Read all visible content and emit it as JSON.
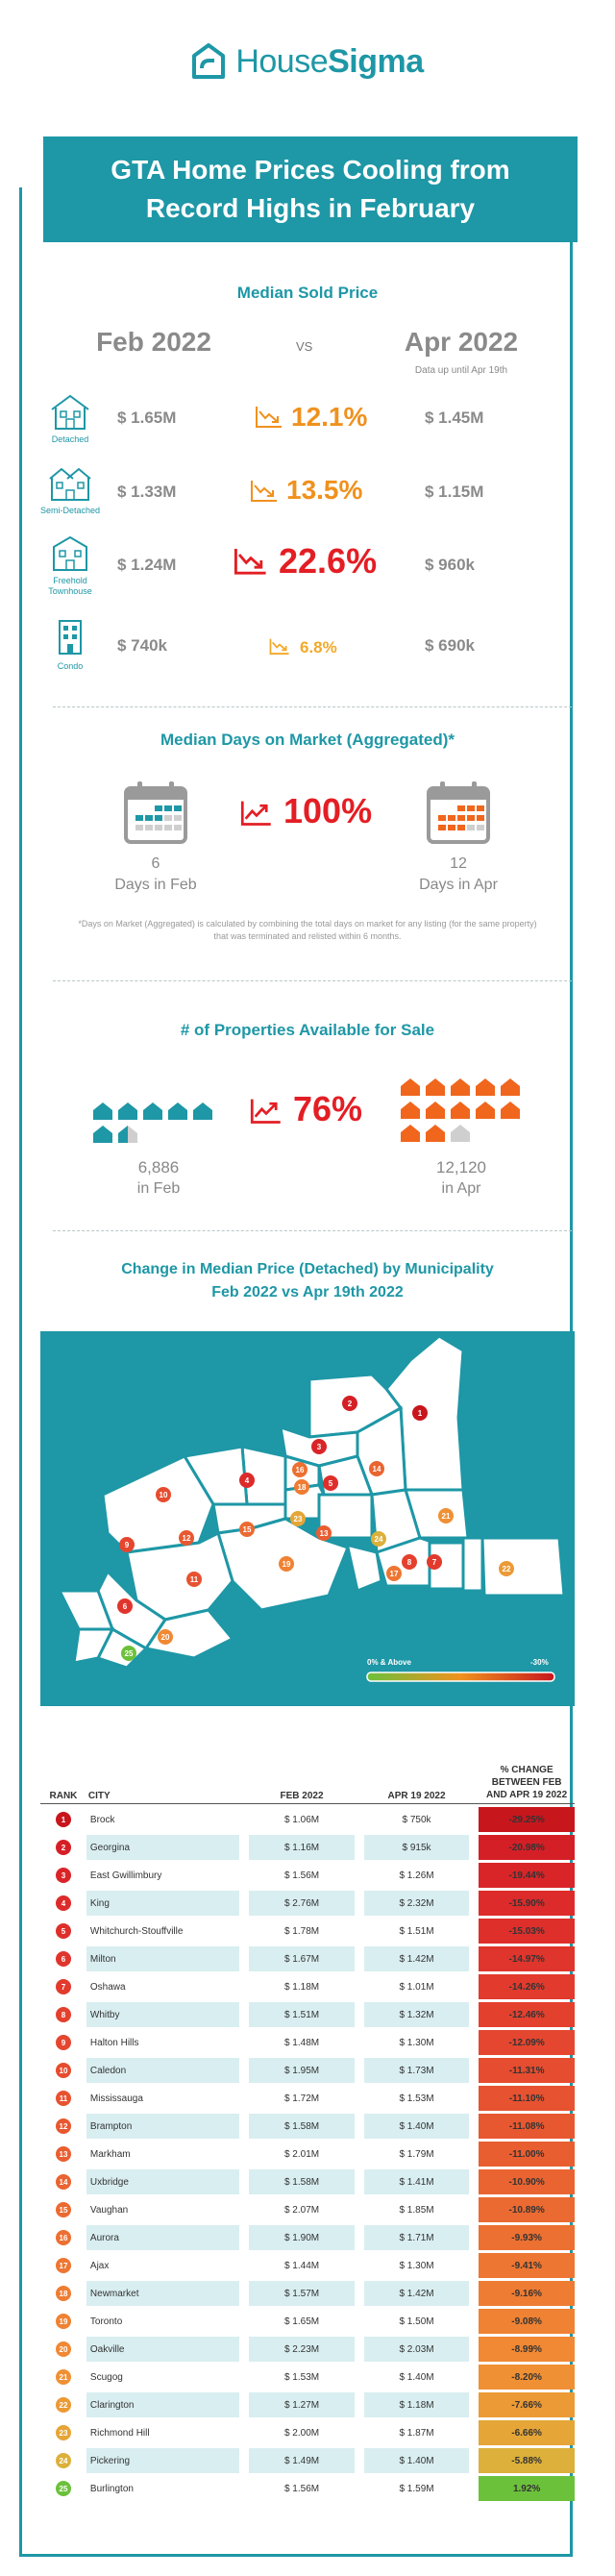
{
  "brand": {
    "name_light": "House",
    "name_bold": "Sigma"
  },
  "title": {
    "line1": "GTA Home Prices Cooling from",
    "line2": "Record Highs in February"
  },
  "median_price": {
    "section_title": "Median Sold Price",
    "col_left": "Feb 2022",
    "vs": "VS",
    "col_right": "Apr 2022",
    "col_right_note": "Data up until Apr 19th",
    "rows": [
      {
        "type": "Detached",
        "feb": "$ 1.65M",
        "pct": "12.1%",
        "apr": "$ 1.45M",
        "color": "#f0911d"
      },
      {
        "type": "Semi-Detached",
        "feb": "$ 1.33M",
        "pct": "13.5%",
        "apr": "$ 1.15M",
        "color": "#f0911d"
      },
      {
        "type": "Freehold Townhouse",
        "feb": "$ 1.24M",
        "pct": "22.6%",
        "apr": "$ 960k",
        "color": "#e31e24"
      },
      {
        "type": "Condo",
        "feb": "$ 740k",
        "pct": "6.8%",
        "apr": "$ 690k",
        "color": "#f3a928"
      }
    ]
  },
  "days_on_market": {
    "section_title": "Median Days on Market (Aggregated)*",
    "feb_value": "6",
    "feb_label": "Days in Feb",
    "pct": "100%",
    "apr_value": "12",
    "apr_label": "Days in Apr",
    "note": "*Days on Market (Aggregated) is calculated by combining the total days on market for any listing (for the same property) that was terminated and relisted within 6 months."
  },
  "properties": {
    "section_title": "# of Properties Available for Sale",
    "feb_value": "6,886",
    "feb_label": "in Feb",
    "pct": "76%",
    "apr_value": "12,120",
    "apr_label": "in Apr"
  },
  "map": {
    "title_line1": "Change in Median Price (Detached) by Municipality",
    "title_line2": "Feb 2022 vs Apr 19th 2022",
    "legend_low": "0% & Above",
    "legend_high": "-30%"
  },
  "table": {
    "headers": {
      "rank": "RANK",
      "city": "CITY",
      "feb": "FEB 2022",
      "apr": "APR 19 2022",
      "chg": "% CHANGE BETWEEN FEB AND APR 19 2022"
    },
    "rows": [
      {
        "rank": "1",
        "city": "Brock",
        "feb": "$ 1.06M",
        "apr": "$ 750k",
        "chg": "-29.25%",
        "color": "#c8161d"
      },
      {
        "rank": "2",
        "city": "Georgina",
        "feb": "$ 1.16M",
        "apr": "$ 915k",
        "chg": "-20.98%",
        "color": "#d51f26"
      },
      {
        "rank": "3",
        "city": "East Gwillimbury",
        "feb": "$ 1.56M",
        "apr": "$ 1.26M",
        "chg": "-19.44%",
        "color": "#d92528"
      },
      {
        "rank": "4",
        "city": "King",
        "feb": "$ 2.76M",
        "apr": "$ 2.32M",
        "chg": "-15.90%",
        "color": "#dc2b2a"
      },
      {
        "rank": "5",
        "city": "Whitchurch-Stouffville",
        "feb": "$ 1.78M",
        "apr": "$ 1.51M",
        "chg": "-15.03%",
        "color": "#de2f2b"
      },
      {
        "rank": "6",
        "city": "Milton",
        "feb": "$ 1.67M",
        "apr": "$ 1.42M",
        "chg": "-14.97%",
        "color": "#e0352c"
      },
      {
        "rank": "7",
        "city": "Oshawa",
        "feb": "$ 1.18M",
        "apr": "$ 1.01M",
        "chg": "-14.26%",
        "color": "#e23a2d"
      },
      {
        "rank": "8",
        "city": "Whitby",
        "feb": "$ 1.51M",
        "apr": "$ 1.32M",
        "chg": "-12.46%",
        "color": "#e4402e"
      },
      {
        "rank": "9",
        "city": "Halton Hills",
        "feb": "$ 1.48M",
        "apr": "$ 1.30M",
        "chg": "-12.09%",
        "color": "#e5462f"
      },
      {
        "rank": "10",
        "city": "Caledon",
        "feb": "$ 1.95M",
        "apr": "$ 1.73M",
        "chg": "-11.31%",
        "color": "#e64c2f"
      },
      {
        "rank": "11",
        "city": "Mississauga",
        "feb": "$ 1.72M",
        "apr": "$ 1.53M",
        "chg": "-11.10%",
        "color": "#e75230"
      },
      {
        "rank": "12",
        "city": "Brampton",
        "feb": "$ 1.58M",
        "apr": "$ 1.40M",
        "chg": "-11.08%",
        "color": "#e85830"
      },
      {
        "rank": "13",
        "city": "Markham",
        "feb": "$ 2.01M",
        "apr": "$ 1.79M",
        "chg": "-11.00%",
        "color": "#e95e31"
      },
      {
        "rank": "14",
        "city": "Uxbridge",
        "feb": "$ 1.58M",
        "apr": "$ 1.41M",
        "chg": "-10.90%",
        "color": "#ea6431"
      },
      {
        "rank": "15",
        "city": "Vaughan",
        "feb": "$ 2.07M",
        "apr": "$ 1.85M",
        "chg": "-10.89%",
        "color": "#eb6a31"
      },
      {
        "rank": "16",
        "city": "Aurora",
        "feb": "$ 1.90M",
        "apr": "$ 1.71M",
        "chg": "-9.93%",
        "color": "#ec7032"
      },
      {
        "rank": "17",
        "city": "Ajax",
        "feb": "$ 1.44M",
        "apr": "$ 1.30M",
        "chg": "-9.41%",
        "color": "#ed7632"
      },
      {
        "rank": "18",
        "city": "Newmarket",
        "feb": "$ 1.57M",
        "apr": "$ 1.42M",
        "chg": "-9.16%",
        "color": "#ee7c33"
      },
      {
        "rank": "19",
        "city": "Toronto",
        "feb": "$ 1.65M",
        "apr": "$ 1.50M",
        "chg": "-9.08%",
        "color": "#ef8233"
      },
      {
        "rank": "20",
        "city": "Oakville",
        "feb": "$ 2.23M",
        "apr": "$ 2.03M",
        "chg": "-8.99%",
        "color": "#f08834"
      },
      {
        "rank": "21",
        "city": "Scugog",
        "feb": "$ 1.53M",
        "apr": "$ 1.40M",
        "chg": "-8.20%",
        "color": "#f09034"
      },
      {
        "rank": "22",
        "city": "Clarington",
        "feb": "$ 1.27M",
        "apr": "$ 1.18M",
        "chg": "-7.66%",
        "color": "#eb9a35"
      },
      {
        "rank": "23",
        "city": "Richmond Hill",
        "feb": "$ 2.00M",
        "apr": "$ 1.87M",
        "chg": "-6.66%",
        "color": "#e5a537"
      },
      {
        "rank": "24",
        "city": "Pickering",
        "feb": "$ 1.49M",
        "apr": "$ 1.40M",
        "chg": "-5.88%",
        "color": "#dcb03a"
      },
      {
        "rank": "25",
        "city": "Burlington",
        "feb": "$ 1.56M",
        "apr": "$ 1.59M",
        "chg": "1.92%",
        "color": "#6cc13b"
      }
    ]
  }
}
